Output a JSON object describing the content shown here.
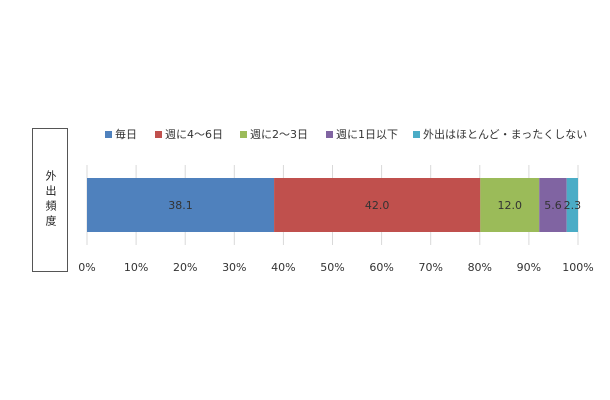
{
  "chart_data": {
    "type": "stacked-bar-horizontal",
    "categories": [
      "外出頻度"
    ],
    "series": [
      {
        "name": "毎日",
        "color": "#4f81bd",
        "values": [
          38.1
        ],
        "value_labels": [
          "38.1"
        ]
      },
      {
        "name": "週に4～6日",
        "color": "#c0504d",
        "values": [
          42.0
        ],
        "value_labels": [
          "42.0"
        ]
      },
      {
        "name": "週に2～3日",
        "color": "#9bbb59",
        "values": [
          12.0
        ],
        "value_labels": [
          "12.0"
        ]
      },
      {
        "name": "週に1日以下",
        "color": "#8064a2",
        "values": [
          5.6
        ],
        "value_labels": [
          "5.6"
        ]
      },
      {
        "name": "外出はほとんど・まったくしない",
        "color": "#4bacc6",
        "values": [
          2.3
        ],
        "value_labels": [
          "2.3"
        ]
      }
    ],
    "xlim": [
      0,
      100
    ],
    "xticks": [
      {
        "value": 0,
        "label": "0%"
      },
      {
        "value": 10,
        "label": "10%"
      },
      {
        "value": 20,
        "label": "20%"
      },
      {
        "value": 30,
        "label": "30%"
      },
      {
        "value": 40,
        "label": "40%"
      },
      {
        "value": 50,
        "label": "50%"
      },
      {
        "value": 60,
        "label": "60%"
      },
      {
        "value": 70,
        "label": "70%"
      },
      {
        "value": 80,
        "label": "80%"
      },
      {
        "value": 90,
        "label": "90%"
      },
      {
        "value": 100,
        "label": "100%"
      }
    ],
    "grid": true,
    "legend": "top"
  }
}
